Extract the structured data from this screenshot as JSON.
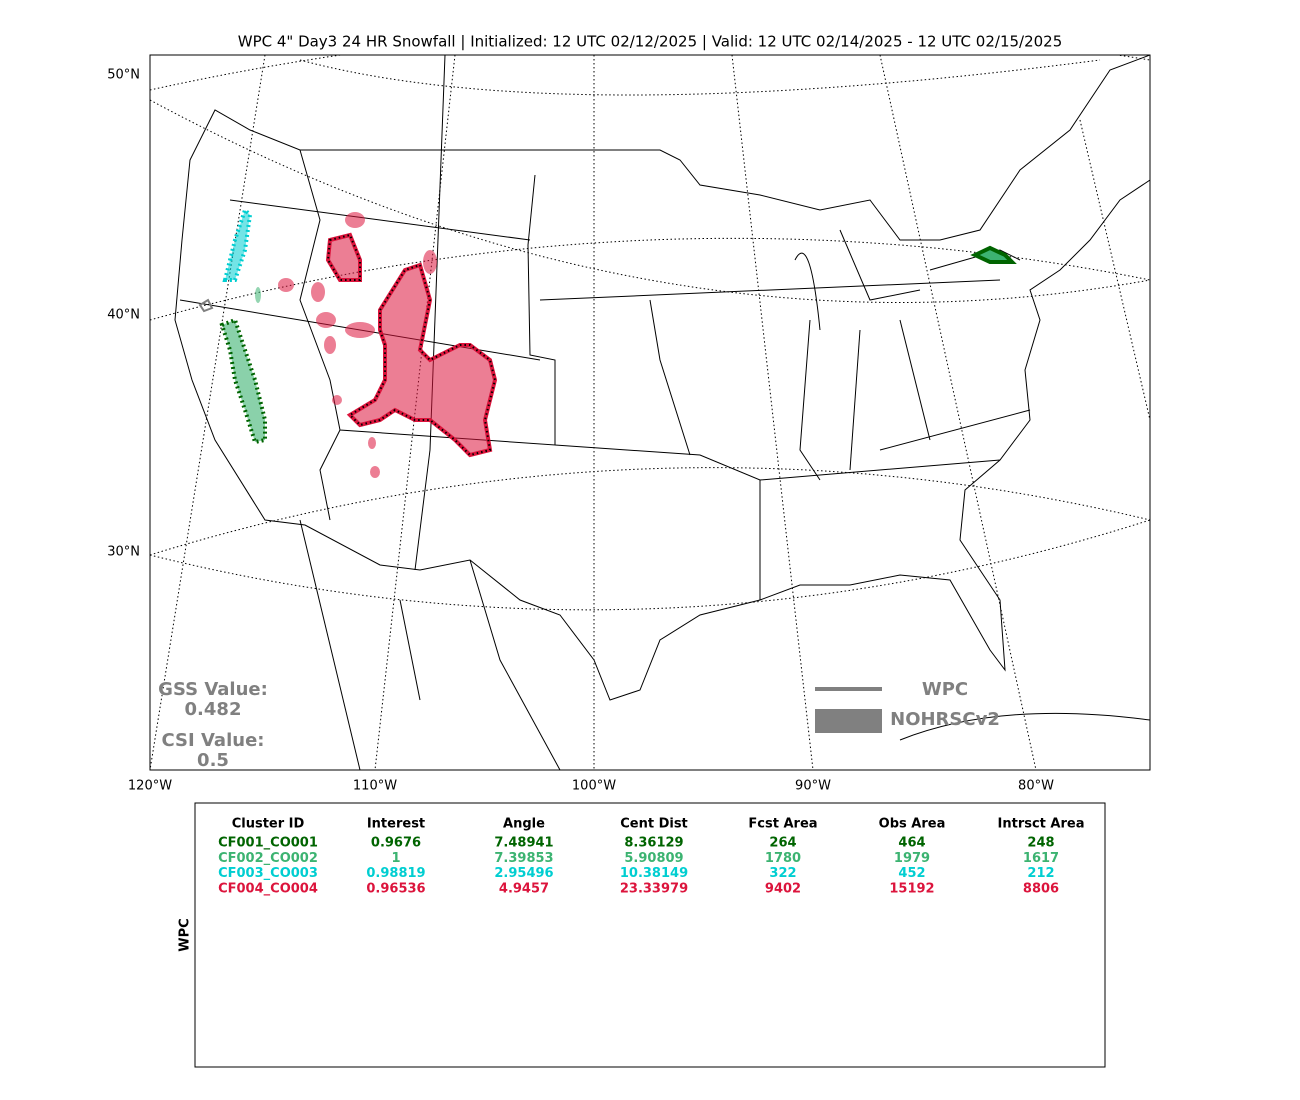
{
  "title": "WPC 4\" Day3 24 HR Snowfall | Initialized: 12 UTC 02/12/2025 | Valid: 12 UTC 02/14/2025 - 12 UTC 02/15/2025",
  "map": {
    "lat_labels": [
      "50°N",
      "40°N",
      "30°N"
    ],
    "lon_labels": [
      "120°W",
      "110°W",
      "100°W",
      "90°W",
      "80°W"
    ]
  },
  "legend": {
    "line": "WPC",
    "fill": "NOHRSCv2"
  },
  "stats": {
    "gss_label": "GSS Value:",
    "gss_value": 0.482,
    "csi_label": "CSI Value:",
    "csi_value": 0.5
  },
  "table": {
    "side_label": "WPC",
    "headers": [
      "Cluster ID",
      "Interest",
      "Angle",
      "Cent Dist",
      "Fcst Area",
      "Obs Area",
      "Intrsct Area"
    ],
    "rows": [
      {
        "color": "#006400",
        "cells": [
          "CF001_CO001",
          0.9676,
          7.48941,
          8.36129,
          264,
          464,
          248
        ]
      },
      {
        "color": "#3cb371",
        "cells": [
          "CF002_CO002",
          1,
          7.39853,
          5.90809,
          1780,
          1979,
          1617
        ]
      },
      {
        "color": "#00ced1",
        "cells": [
          "CF003_CO003",
          0.98819,
          2.95496,
          10.38149,
          322,
          452,
          212
        ]
      },
      {
        "color": "#dc143c",
        "cells": [
          "CF004_CO004",
          0.96536,
          4.9457,
          23.33979,
          9402,
          15192,
          8806
        ]
      }
    ]
  }
}
